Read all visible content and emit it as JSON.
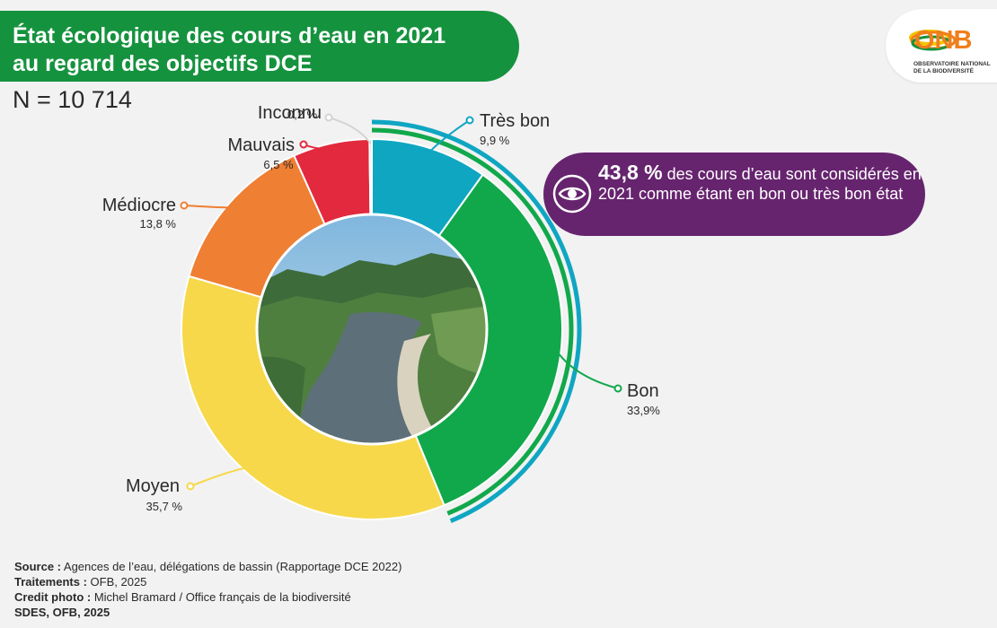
{
  "title": {
    "line1": "État écologique des cours d’eau en 2021",
    "line2": "au regard des objectifs DCE"
  },
  "n_label": "N = 10 714",
  "logo": {
    "text": "ONB",
    "subtitle_line1": "OBSERVATOIRE NATIONAL",
    "subtitle_line2": "DE LA BIODIVERSITÉ"
  },
  "callout": {
    "highlight": "43,8 %",
    "text": " des cours d’eau sont considérés en 2021 comme étant en bon ou très bon état",
    "icon": "eye-icon"
  },
  "footer": {
    "source_label": "Source :",
    "source_text": " Agences de l’eau, délégations de bassin (Rapportage DCE 2022)",
    "treatments_label": "Traitements :",
    "treatments_text": " OFB, 2025",
    "credit_label": "Credit photo :",
    "credit_text": " Michel Bramard / Office français de la biodiversité",
    "producer": "SDES, OFB, 2025"
  },
  "chart_data": {
    "type": "pie",
    "title": "État écologique des cours d’eau en 2021 au regard des objectifs DCE",
    "total": 10714,
    "slices": [
      {
        "label": "Très bon",
        "value": 9.9,
        "value_label": "9,9 %",
        "color": "#0fa6c2"
      },
      {
        "label": "Bon",
        "value": 33.9,
        "value_label": "33,9%",
        "color": "#11a84b"
      },
      {
        "label": "Moyen",
        "value": 35.7,
        "value_label": "35,7 %",
        "color": "#f6d84a"
      },
      {
        "label": "Médiocre",
        "value": 13.8,
        "value_label": "13,8 %",
        "color": "#ef7f33"
      },
      {
        "label": "Mauvais",
        "value": 6.5,
        "value_label": "6,5 %",
        "color": "#e2293d"
      },
      {
        "label": "Inconnu",
        "value": 0.2,
        "value_label": "0,2 %",
        "color": "#d4d4d4"
      }
    ]
  }
}
